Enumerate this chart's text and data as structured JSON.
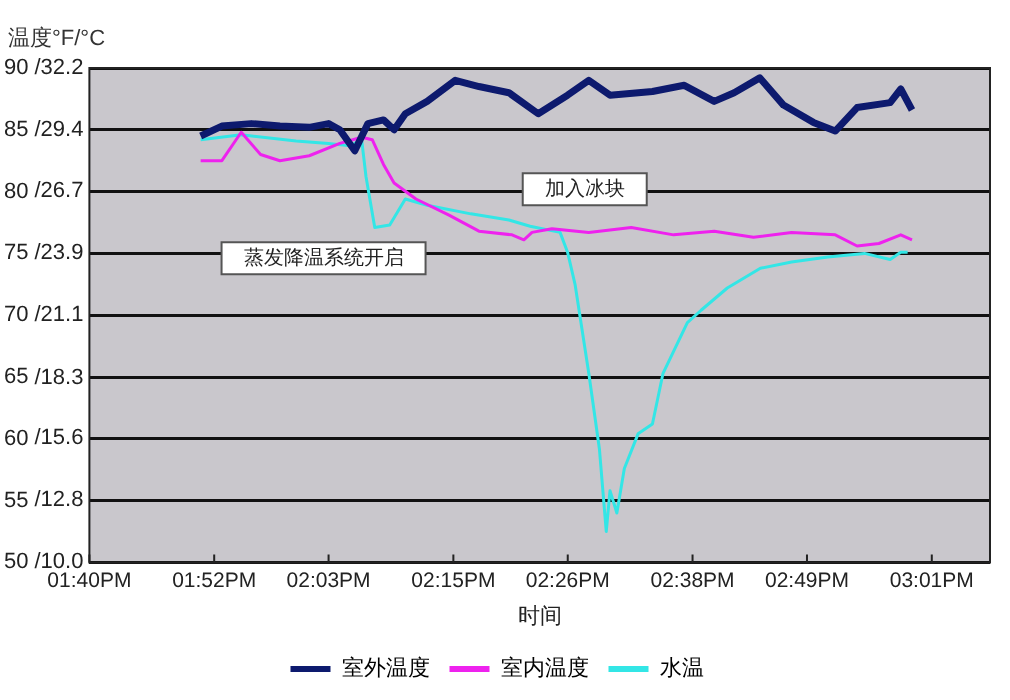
{
  "chart_data": {
    "type": "line",
    "y2label": "温度°F/°C",
    "xlabel": "时间",
    "xlim": [
      13.6667,
      15.11
    ],
    "xticks": [
      {
        "value": 13.6667,
        "label": "01:40PM"
      },
      {
        "value": 13.8667,
        "label": "01:52PM"
      },
      {
        "value": 14.05,
        "label": "02:03PM"
      },
      {
        "value": 14.25,
        "label": "02:15PM"
      },
      {
        "value": 14.4333,
        "label": "02:26PM"
      },
      {
        "value": 14.6333,
        "label": "02:38PM"
      },
      {
        "value": 14.8167,
        "label": "02:49PM"
      },
      {
        "value": 15.0167,
        "label": "03:01PM"
      }
    ],
    "ylim": [
      50,
      90
    ],
    "yticks": [
      50,
      55,
      60,
      65,
      70,
      75,
      80,
      85,
      90
    ],
    "y2lim": [
      10.0,
      32.2
    ],
    "y2ticks": [
      {
        "value": 10,
        "label": "/10.0"
      },
      {
        "value": 12.8,
        "label": "/12.8"
      },
      {
        "value": 15.6,
        "label": "/15.6"
      },
      {
        "value": 18.3,
        "label": "/18.3"
      },
      {
        "value": 21.1,
        "label": "/21.1"
      },
      {
        "value": 23.9,
        "label": "/23.9"
      },
      {
        "value": 26.7,
        "label": "/26.7"
      },
      {
        "value": 29.4,
        "label": "/29.4"
      },
      {
        "value": 32.2,
        "label": "/32.2"
      }
    ],
    "grid": "y",
    "legend": "bottom",
    "marker": "none",
    "line_style": "solid",
    "annotations": [
      "加入冰块",
      "蒸发降温系统开启"
    ],
    "series": [
      {
        "name": "室外温度",
        "color": "#0d1a6e",
        "x": [
          13.845,
          13.879,
          13.926,
          13.972,
          14.019,
          14.05,
          14.068,
          14.092,
          14.113,
          14.138,
          14.155,
          14.173,
          14.208,
          14.253,
          14.291,
          14.339,
          14.386,
          14.433,
          14.467,
          14.501,
          14.569,
          14.62,
          14.668,
          14.7,
          14.741,
          14.779,
          14.827,
          14.862,
          14.897,
          14.95,
          14.967,
          14.985
        ],
        "values": [
          84.5,
          85.3,
          85.5,
          85.3,
          85.2,
          85.5,
          85.0,
          83.3,
          85.5,
          85.8,
          85.0,
          86.3,
          87.3,
          89.0,
          88.5,
          88.0,
          86.3,
          87.8,
          89.0,
          87.8,
          88.1,
          88.6,
          87.3,
          88.0,
          89.2,
          87.0,
          85.6,
          84.9,
          86.8,
          87.2,
          88.3,
          86.6
        ]
      },
      {
        "name": "室内温度",
        "color": "#ee22ee",
        "x": [
          13.845,
          13.879,
          13.91,
          13.941,
          13.972,
          14.019,
          14.068,
          14.103,
          14.12,
          14.138,
          14.155,
          14.19,
          14.243,
          14.291,
          14.344,
          14.363,
          14.376,
          14.408,
          14.467,
          14.535,
          14.603,
          14.668,
          14.731,
          14.792,
          14.862,
          14.897,
          14.932,
          14.967,
          14.985
        ],
        "values": [
          82.5,
          82.5,
          84.8,
          83.0,
          82.5,
          82.9,
          83.9,
          84.4,
          84.2,
          82.2,
          80.7,
          79.4,
          78.1,
          76.8,
          76.5,
          76.1,
          76.7,
          77.0,
          76.7,
          77.1,
          76.5,
          76.8,
          76.3,
          76.7,
          76.5,
          75.6,
          75.8,
          76.5,
          76.1
        ]
      },
      {
        "name": "水温",
        "color": "#33e6e6",
        "x": [
          13.845,
          13.91,
          13.998,
          14.05,
          14.085,
          14.103,
          14.11,
          14.124,
          14.148,
          14.173,
          14.208,
          14.278,
          14.339,
          14.373,
          14.421,
          14.433,
          14.445,
          14.467,
          14.484,
          14.495,
          14.501,
          14.512,
          14.524,
          14.546,
          14.569,
          14.586,
          14.625,
          14.647,
          14.689,
          14.742,
          14.792,
          14.85,
          14.909,
          14.95,
          14.967,
          14.978
        ],
        "values": [
          84.2,
          84.6,
          84.1,
          83.9,
          83.7,
          84.2,
          81.2,
          77.1,
          77.3,
          79.4,
          78.9,
          78.2,
          77.7,
          77.2,
          76.7,
          75.1,
          72.5,
          65.3,
          59.2,
          52.5,
          55.8,
          54.0,
          57.6,
          60.4,
          61.2,
          65.3,
          69.4,
          70.4,
          72.2,
          73.8,
          74.3,
          74.7,
          75.0,
          74.5,
          75.1,
          75.1
        ]
      }
    ]
  }
}
